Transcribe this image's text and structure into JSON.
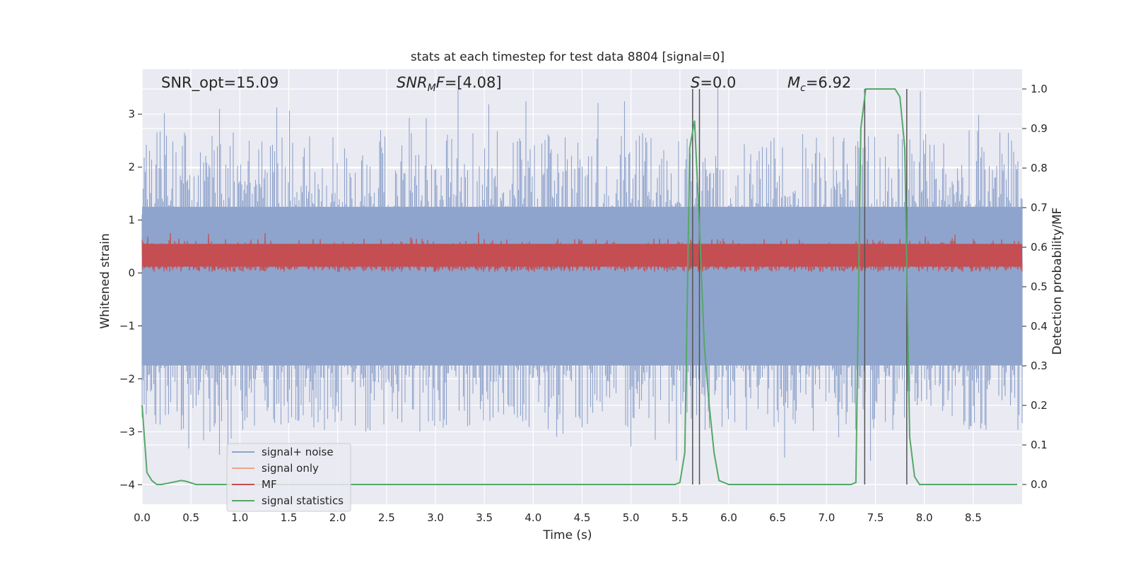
{
  "chart_data": {
    "type": "line",
    "title": "stats at each timestep for test data 8804 [signal=0]",
    "xlabel": "Time (s)",
    "ylabel": "Whitened strain",
    "ylabel_right": "Detection probability/MF",
    "xlim": [
      0.0,
      9.0
    ],
    "ylim": [
      -4.37,
      3.85
    ],
    "ylim_right": [
      -0.05,
      1.05
    ],
    "x_ticks": [
      "0.0",
      "0.5",
      "1.0",
      "1.5",
      "2.0",
      "2.5",
      "3.0",
      "3.5",
      "4.0",
      "4.5",
      "5.0",
      "5.5",
      "6.0",
      "6.5",
      "7.0",
      "7.5",
      "8.0",
      "8.5"
    ],
    "y_ticks": [
      "−4",
      "−3",
      "−2",
      "−1",
      "0",
      "1",
      "2",
      "3"
    ],
    "y_right_ticks": [
      "0.0",
      "0.1",
      "0.2",
      "0.3",
      "0.4",
      "0.5",
      "0.6",
      "0.7",
      "0.8",
      "0.9",
      "1.0"
    ],
    "grid": true,
    "legend_position": "lower-left",
    "annotations": {
      "snr_opt": "SNR_opt=15.09",
      "snr_mf_var": "SNR",
      "snr_mf_sub": "M",
      "snr_mf_var2": "F",
      "snr_mf_value": "=[4.08]",
      "s_var": "S",
      "s_value": "=0.0",
      "mc_var": "M",
      "mc_sub": "c",
      "mc_value": "=6.92"
    },
    "series": [
      {
        "name": "signal+ noise",
        "color": "#8fa4cc",
        "axis": "left",
        "note": "dense whitened noise band",
        "core_band": [
          -1.75,
          1.25
        ],
        "spike_range": [
          -4.0,
          3.5
        ]
      },
      {
        "name": "signal only",
        "color": "#f0a58a",
        "axis": "left",
        "values": []
      },
      {
        "name": "MF",
        "color": "#c44e52",
        "axis": "left",
        "note": "dense band between about 0 and 0.9",
        "core_band": [
          0.0,
          0.95
        ]
      },
      {
        "name": "signal statistics",
        "color": "#55a868",
        "axis": "right",
        "x": [
          0.0,
          0.05,
          0.1,
          0.15,
          0.2,
          0.3,
          0.4,
          0.45,
          0.55,
          0.6,
          1.0,
          2.0,
          3.0,
          4.0,
          5.0,
          5.45,
          5.5,
          5.55,
          5.6,
          5.65,
          5.7,
          5.75,
          5.8,
          5.85,
          5.9,
          5.95,
          6.0,
          6.1,
          7.0,
          7.25,
          7.3,
          7.35,
          7.4,
          7.45,
          7.5,
          7.7,
          7.75,
          7.8,
          7.85,
          7.9,
          7.95,
          8.0,
          8.5,
          8.95
        ],
        "y": [
          0.2,
          0.03,
          0.01,
          0.0,
          0.0,
          0.005,
          0.01,
          0.008,
          0.0,
          0.0,
          0.0,
          0.0,
          0.0,
          0.0,
          0.0,
          0.0,
          0.005,
          0.08,
          0.85,
          0.92,
          0.65,
          0.35,
          0.2,
          0.08,
          0.01,
          0.005,
          0.0,
          0.0,
          0.0,
          0.0,
          0.005,
          0.9,
          1.0,
          1.0,
          1.0,
          1.0,
          0.98,
          0.85,
          0.12,
          0.02,
          0.0,
          0.0,
          0.0,
          0.0
        ]
      }
    ],
    "vertical_markers": [
      5.63,
      5.7,
      7.39,
      7.82
    ]
  },
  "colors": {
    "plot_background": "#eaeaf2",
    "grid": "#ffffff",
    "marker_line": "#555555"
  }
}
